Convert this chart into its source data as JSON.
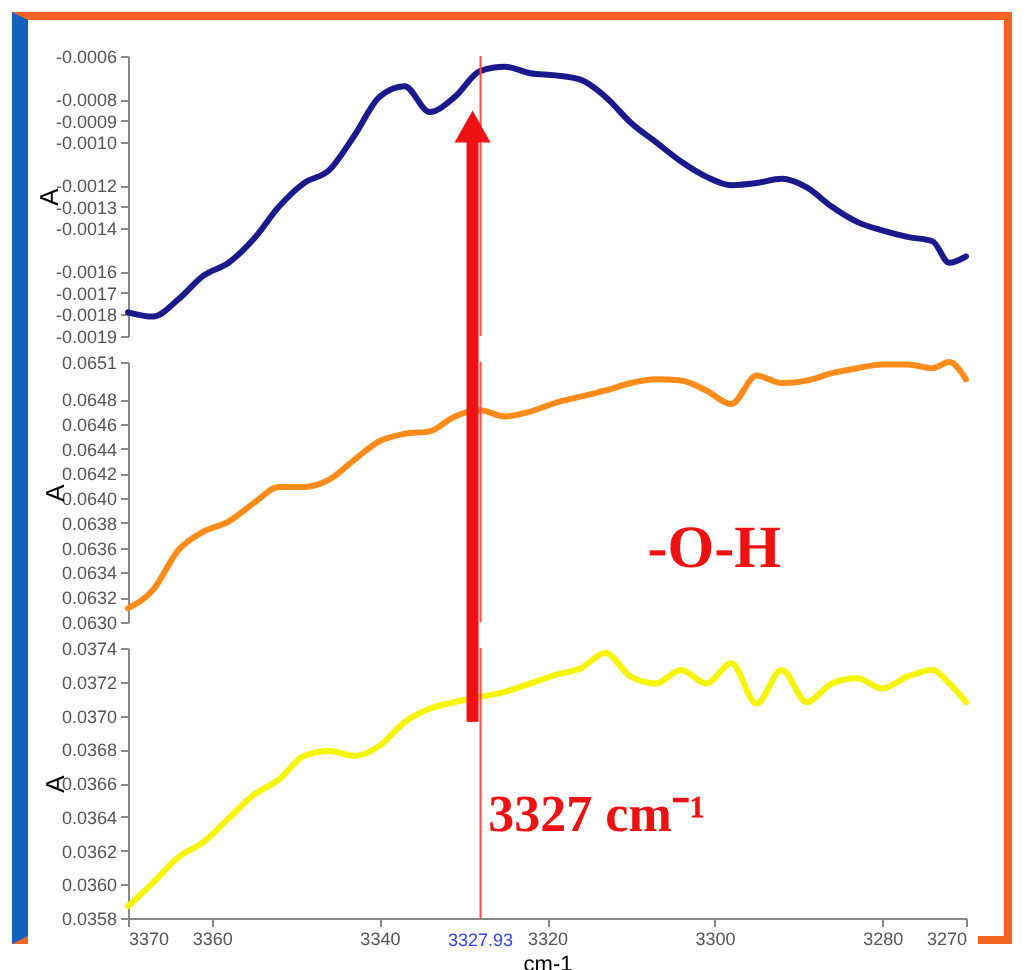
{
  "chart_data": [
    {
      "type": "line",
      "ylabel": "A",
      "xlim": [
        3370,
        3270
      ],
      "ylim": [
        -0.0019,
        -0.0006
      ],
      "yticks": [
        -0.0019,
        -0.0018,
        -0.0017,
        -0.0016,
        -0.0014,
        -0.0013,
        -0.0012,
        {
          "value": -0.001,
          "label": "-0.0010"
        },
        -0.0009,
        -0.0008,
        -0.0006
      ],
      "tick_labels": "y",
      "grid": false,
      "x": [
        3370,
        3367,
        3364,
        3361,
        3358,
        3355,
        3352,
        3349,
        3346,
        3343,
        3340,
        3337,
        3334,
        3331,
        3328,
        3325,
        3322,
        3319,
        3316,
        3313,
        3310,
        3307,
        3304,
        3301,
        3298,
        3295,
        3292,
        3289,
        3286,
        3283,
        3280,
        3277,
        3274,
        3272,
        3270
      ],
      "series": [
        {
          "color": "#1a1a8c",
          "values": [
            -0.00179,
            -0.00181,
            -0.00173,
            -0.00162,
            -0.00156,
            -0.00145,
            -0.0013,
            -0.00119,
            -0.00113,
            -0.00097,
            -0.00079,
            -0.00074,
            -0.00086,
            -0.00079,
            -0.00067,
            -0.00065,
            -0.00068,
            -0.00069,
            -0.00071,
            -0.00079,
            -0.00091,
            -0.001,
            -0.00109,
            -0.00116,
            -0.0012,
            -0.00119,
            -0.00117,
            -0.00121,
            -0.0013,
            -0.00137,
            -0.00141,
            -0.00144,
            -0.00146,
            -0.00156,
            -0.00153
          ]
        }
      ],
      "ref_lines": [
        {
          "axis": "x",
          "value": 3327.93,
          "color": "#ff4d4d"
        }
      ]
    },
    {
      "type": "line",
      "ylabel": "A",
      "xlim": [
        3370,
        3270
      ],
      "ylim": [
        0.063,
        0.0651
      ],
      "yticks": [
        {
          "value": 0.063,
          "label": "0.0630"
        },
        0.0632,
        0.0634,
        0.0636,
        0.0638,
        {
          "value": 0.064,
          "label": "0.0640"
        },
        0.0642,
        0.0644,
        0.0646,
        0.0648,
        0.0651
      ],
      "tick_labels": "y",
      "grid": false,
      "x": [
        3370,
        3367,
        3364,
        3361,
        3358,
        3355,
        3352,
        3349,
        3346,
        3343,
        3340,
        3337,
        3334,
        3331,
        3328,
        3325,
        3322,
        3319,
        3316,
        3313,
        3310,
        3307,
        3304,
        3301,
        3298,
        3295,
        3292,
        3289,
        3286,
        3283,
        3280,
        3277,
        3274,
        3272,
        3270
      ],
      "series": [
        {
          "color": "#ff8c1a",
          "values": [
            0.06311,
            0.06326,
            0.06358,
            0.06373,
            0.06381,
            0.06396,
            0.06409,
            0.06409,
            0.06415,
            0.06431,
            0.06446,
            0.06452,
            0.06454,
            0.06466,
            0.06471,
            0.06466,
            0.0647,
            0.06477,
            0.06482,
            0.06487,
            0.06493,
            0.06496,
            0.06495,
            0.06487,
            0.06476,
            0.06499,
            0.06493,
            0.06495,
            0.06501,
            0.06505,
            0.06508,
            0.06508,
            0.06505,
            0.0651,
            0.06496
          ]
        }
      ],
      "ref_lines": [
        {
          "axis": "x",
          "value": 3327.93,
          "color": "#ff4d4d"
        }
      ],
      "annotations": [
        "-O-H"
      ]
    },
    {
      "type": "line",
      "ylabel": "A",
      "xlabel": "cm-1",
      "xlim": [
        3370,
        3270
      ],
      "xticks": [
        3370,
        3360,
        3340,
        3320,
        3300,
        3280,
        3270
      ],
      "ylim": [
        0.0358,
        0.0374
      ],
      "yticks": [
        0.0358,
        {
          "value": 0.036,
          "label": "0.0360"
        },
        0.0362,
        0.0364,
        0.0366,
        0.0368,
        {
          "value": 0.037,
          "label": "0.0370"
        },
        0.0372,
        0.0374
      ],
      "grid": false,
      "x": [
        3370,
        3367,
        3364,
        3361,
        3358,
        3355,
        3352,
        3349,
        3346,
        3343,
        3340,
        3337,
        3334,
        3331,
        3328,
        3325,
        3322,
        3319,
        3316,
        3313,
        3310,
        3307,
        3304,
        3301,
        3298,
        3295,
        3292,
        3289,
        3286,
        3283,
        3280,
        3277,
        3274,
        3272,
        3270
      ],
      "series": [
        {
          "color": "#f5f500",
          "values": [
            0.03587,
            0.03601,
            0.03616,
            0.03625,
            0.03639,
            0.03653,
            0.03662,
            0.03676,
            0.03679,
            0.03676,
            0.03682,
            0.03696,
            0.03704,
            0.03708,
            0.03711,
            0.03714,
            0.03719,
            0.03724,
            0.03728,
            0.03737,
            0.03723,
            0.03719,
            0.03727,
            0.03719,
            0.03731,
            0.03707,
            0.03727,
            0.03708,
            0.03719,
            0.03722,
            0.03716,
            0.03723,
            0.03727,
            0.03719,
            0.03708
          ]
        }
      ],
      "ref_lines": [
        {
          "axis": "x",
          "value": 3327.93,
          "label": "3327.93",
          "color": "#ff4d4d"
        }
      ],
      "annotations": [
        "3327 cm⁻¹"
      ]
    }
  ]
}
